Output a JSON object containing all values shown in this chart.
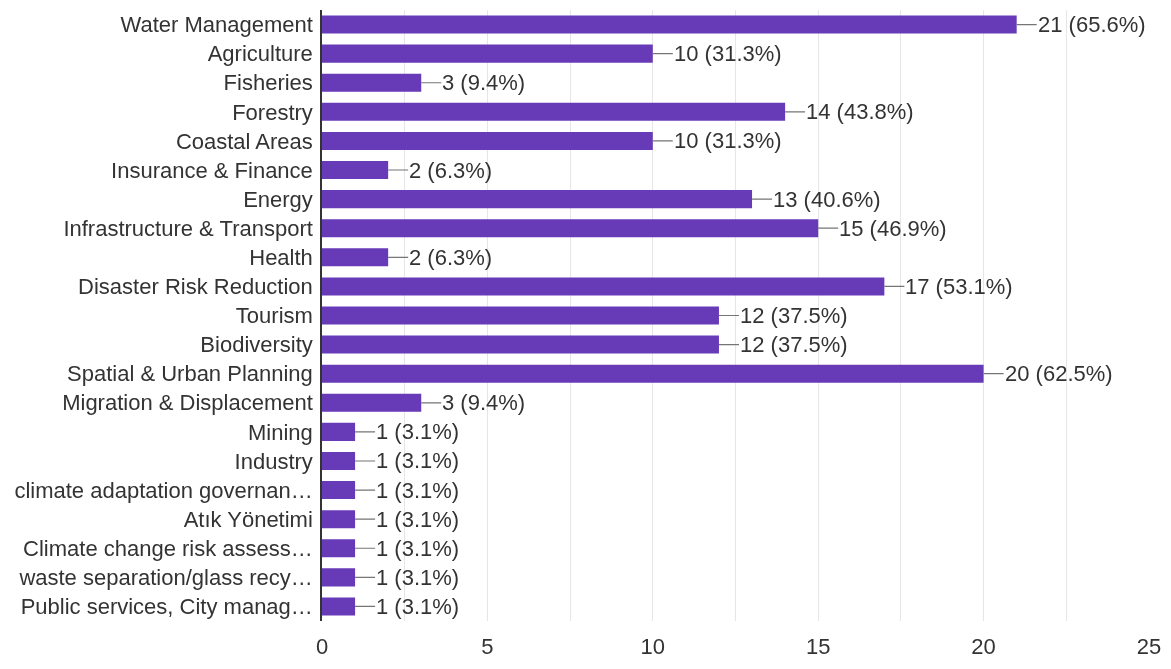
{
  "chart_data": {
    "type": "bar",
    "orientation": "horizontal",
    "categories": [
      "Water Management",
      "Agriculture",
      "Fisheries",
      "Forestry",
      "Coastal Areas",
      "Insurance & Finance",
      "Energy",
      "Infrastructure & Transport",
      "Health",
      "Disaster Risk Reduction",
      "Tourism",
      "Biodiversity",
      "Spatial & Urban Planning",
      "Migration & Displacement",
      "Mining",
      "Industry",
      "climate adaptation governan…",
      "Atık Yönetimi",
      "Climate change risk assess…",
      "waste separation/glass recy…",
      "Public services, City manag…"
    ],
    "values": [
      21,
      10,
      3,
      14,
      10,
      2,
      13,
      15,
      2,
      17,
      12,
      12,
      20,
      3,
      1,
      1,
      1,
      1,
      1,
      1,
      1
    ],
    "value_labels": [
      "21 (65.6%)",
      "10 (31.3%)",
      "3 (9.4%)",
      "14 (43.8%)",
      "10 (31.3%)",
      "2 (6.3%)",
      "13 (40.6%)",
      "15 (46.9%)",
      "2 (6.3%)",
      "17 (53.1%)",
      "12 (37.5%)",
      "12 (37.5%)",
      "20 (62.5%)",
      "3 (9.4%)",
      "1 (3.1%)",
      "1 (3.1%)",
      "1 (3.1%)",
      "1 (3.1%)",
      "1 (3.1%)",
      "1 (3.1%)",
      "1 (3.1%)"
    ],
    "color": "#673ab7",
    "xlim": [
      0,
      25
    ],
    "xticks": [
      0,
      {
        "value": 2.5,
        "label": null
      },
      5,
      {
        "value": 7.5,
        "label": null
      },
      10,
      {
        "value": 12.5,
        "label": null
      },
      15,
      {
        "value": 17.5,
        "label": null
      },
      20,
      {
        "value": 22.5,
        "label": null
      },
      25
    ],
    "grid": "x"
  }
}
